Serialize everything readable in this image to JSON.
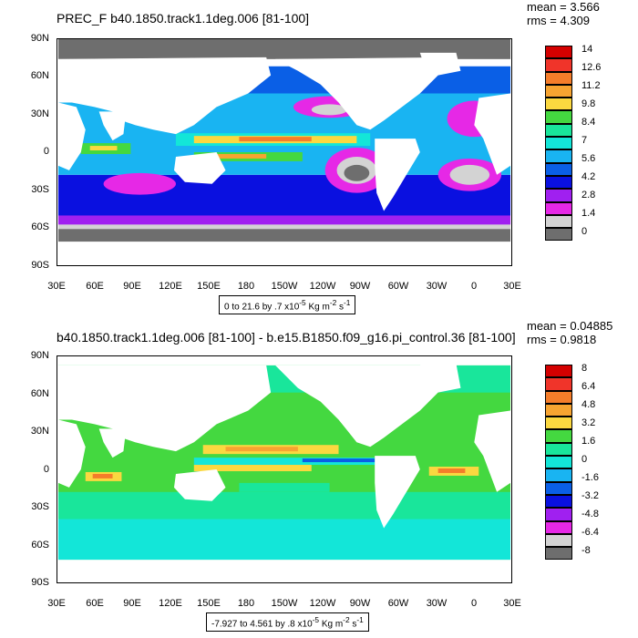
{
  "top_panel": {
    "title": "PREC_F b40.1850.track1.1deg.006 [81-100]",
    "stats": {
      "mean": "mean = 3.566",
      "rms": "rms = 4.309"
    },
    "caption": "0 to 21.6 by .7 x10",
    "caption_exp": "-5",
    "caption_unit": " Kg m",
    "caption_unit_exp": "-2",
    "caption_unit_tail": " s",
    "caption_unit_tail_exp": "-1",
    "legend_labels": [
      "14",
      "12.6",
      "11.2",
      "9.8",
      "8.4",
      "7",
      "5.6",
      "4.2",
      "2.8",
      "1.4",
      "0"
    ],
    "legend_colors": [
      "#d40000",
      "#f0342a",
      "#f57d2a",
      "#f7a431",
      "#fbd840",
      "#44d840",
      "#19e69b",
      "#13e6d8",
      "#19b4f2",
      "#0a5fe6",
      "#0a10e0",
      "#a020f0",
      "#e628e6",
      "#d3d3d3",
      "#6e6e6e"
    ]
  },
  "bottom_panel": {
    "title": "b40.1850.track1.1deg.006 [81-100] - b.e15.B1850.f09_g16.pi_control.36 [81-100]",
    "stats": {
      "mean": "mean = 0.04885",
      "rms": "rms = 0.9818"
    },
    "caption": "-7.927 to 4.561 by .8 x10",
    "caption_exp": "-5",
    "caption_unit": " Kg m",
    "caption_unit_exp": "-2",
    "caption_unit_tail": " s",
    "caption_unit_tail_exp": "-1",
    "legend_labels": [
      "8",
      "6.4",
      "4.8",
      "3.2",
      "1.6",
      "0",
      "-1.6",
      "-3.2",
      "-4.8",
      "-6.4",
      "-8"
    ],
    "legend_colors": [
      "#d40000",
      "#f0342a",
      "#f57d2a",
      "#f7a431",
      "#fbd840",
      "#44d840",
      "#19e69b",
      "#13e6d8",
      "#19b4f2",
      "#0a5fe6",
      "#0a10e0",
      "#a020f0",
      "#e628e6",
      "#d3d3d3",
      "#6e6e6e"
    ]
  },
  "axes": {
    "y_ticks": [
      "90N",
      "60N",
      "30N",
      "0",
      "30S",
      "60S",
      "90S"
    ],
    "x_ticks": [
      "30E",
      "60E",
      "90E",
      "120E",
      "150E",
      "180",
      "150W",
      "120W",
      "90W",
      "60W",
      "30W",
      "0",
      "30E"
    ]
  },
  "chart_data": [
    {
      "type": "heatmap",
      "title": "PREC_F b40.1850.track1.1deg.006 [81-100]",
      "subtitle": "0 to 21.6 by .7 x10^-5 Kg m^-2 s^-1",
      "xlabel": "",
      "ylabel": "",
      "x_ticks": [
        "30E",
        "60E",
        "90E",
        "120E",
        "150E",
        "180",
        "150W",
        "120W",
        "90W",
        "60W",
        "30W",
        "0",
        "30E"
      ],
      "y_ticks": [
        "90N",
        "60N",
        "30N",
        "0",
        "30S",
        "60S",
        "90S"
      ],
      "colorbar_levels": [
        0,
        1.4,
        2.8,
        4.2,
        5.6,
        7,
        8.4,
        9.8,
        11.2,
        12.6,
        14
      ],
      "mean": 3.566,
      "rms": 4.309,
      "grid": false
    },
    {
      "type": "heatmap",
      "title": "b40.1850.track1.1deg.006 [81-100] - b.e15.B1850.f09_g16.pi_control.36 [81-100]",
      "subtitle": "-7.927 to 4.561 by .8 x10^-5 Kg m^-2 s^-1",
      "xlabel": "",
      "ylabel": "",
      "x_ticks": [
        "30E",
        "60E",
        "90E",
        "120E",
        "150E",
        "180",
        "150W",
        "120W",
        "90W",
        "60W",
        "30W",
        "0",
        "30E"
      ],
      "y_ticks": [
        "90N",
        "60N",
        "30N",
        "0",
        "30S",
        "60S",
        "90S"
      ],
      "colorbar_levels": [
        -8,
        -6.4,
        -4.8,
        -3.2,
        -1.6,
        0,
        1.6,
        3.2,
        4.8,
        6.4,
        8
      ],
      "mean": 0.04885,
      "rms": 0.9818,
      "grid": false
    }
  ]
}
